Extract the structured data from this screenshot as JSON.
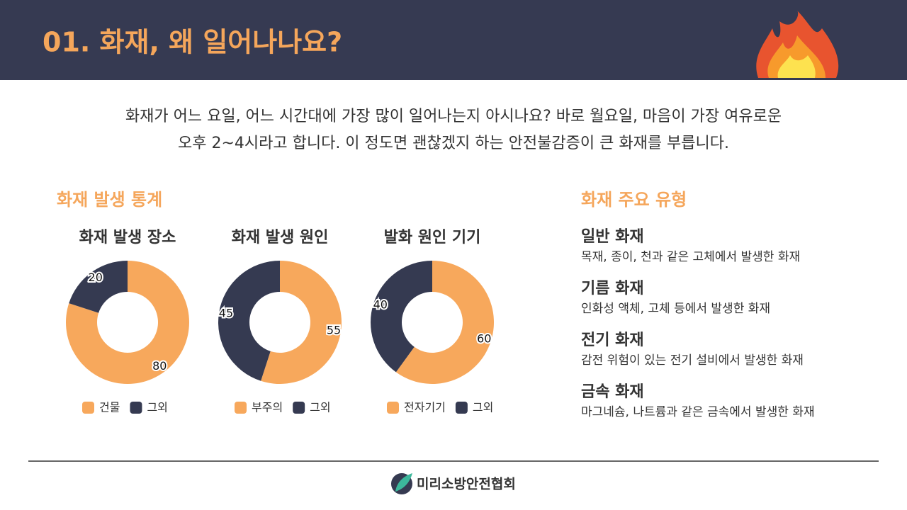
{
  "header": {
    "title": "01. 화재, 왜 일어나나요?"
  },
  "intro": [
    "화재가 어느 요일, 어느 시간대에 가장 많이 일어나는지 아시나요? 바로 월요일, 마음이 가장 여유로운",
    "오후 2~4시라고 합니다. 이 정도면 괜찮겠지 하는 안전불감증이 큰 화재를 부릅니다."
  ],
  "stats_title": "화재 발생 통계",
  "chart_data": [
    {
      "type": "donut",
      "title": "화재 발생 장소",
      "categories": [
        "건물",
        "그외"
      ],
      "values": [
        80,
        20
      ],
      "colors": [
        "#f7a85c",
        "#353a51"
      ]
    },
    {
      "type": "donut",
      "title": "화재 발생 원인",
      "categories": [
        "부주의",
        "그외"
      ],
      "values": [
        55,
        45
      ],
      "colors": [
        "#f7a85c",
        "#353a51"
      ]
    },
    {
      "type": "donut",
      "title": "발화 원인 기기",
      "categories": [
        "전자기기",
        "그외"
      ],
      "values": [
        60,
        40
      ],
      "colors": [
        "#f7a85c",
        "#353a51"
      ]
    }
  ],
  "types_title": "화재 주요 유형",
  "types": [
    {
      "name": "일반 화재",
      "description": "목재, 종이, 천과 같은 고체에서 발생한 화재"
    },
    {
      "name": "기름 화재",
      "description": "인화성 액체, 고체 등에서 발생한 화재"
    },
    {
      "name": "전기 화재",
      "description": "감전 위험이 있는 전기 설비에서 발생한 화재"
    },
    {
      "name": "금속 화재",
      "description": "마그네슘, 나트륨과 같은 금속에서 발생한 화재"
    }
  ],
  "footer": {
    "organization": "미리소방안전협회"
  }
}
